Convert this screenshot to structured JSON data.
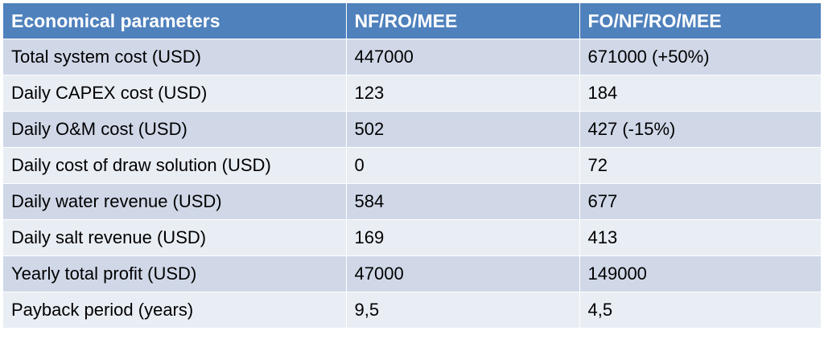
{
  "table": {
    "headers": [
      "Economical parameters",
      "NF/RO/MEE",
      "FO/NF/RO/MEE"
    ],
    "rows": [
      [
        "Total system cost (USD)",
        "447000",
        "671000 (+50%)"
      ],
      [
        "Daily CAPEX cost (USD)",
        "123",
        "184"
      ],
      [
        "Daily O&M cost (USD)",
        "502",
        "427 (-15%)"
      ],
      [
        "Daily cost of draw solution  (USD)",
        "0",
        "72"
      ],
      [
        "Daily water revenue (USD)",
        "584",
        "677"
      ],
      [
        "Daily salt revenue (USD)",
        "169",
        "413"
      ],
      [
        "Yearly total profit (USD)",
        "47000",
        "149000"
      ],
      [
        "Payback period  (years)",
        "9,5",
        "4,5"
      ]
    ]
  },
  "colors": {
    "header_bg": "#4f81bd",
    "row_odd_bg": "#d0d8e8",
    "row_even_bg": "#e9edf4",
    "header_text": "#ffffff"
  }
}
